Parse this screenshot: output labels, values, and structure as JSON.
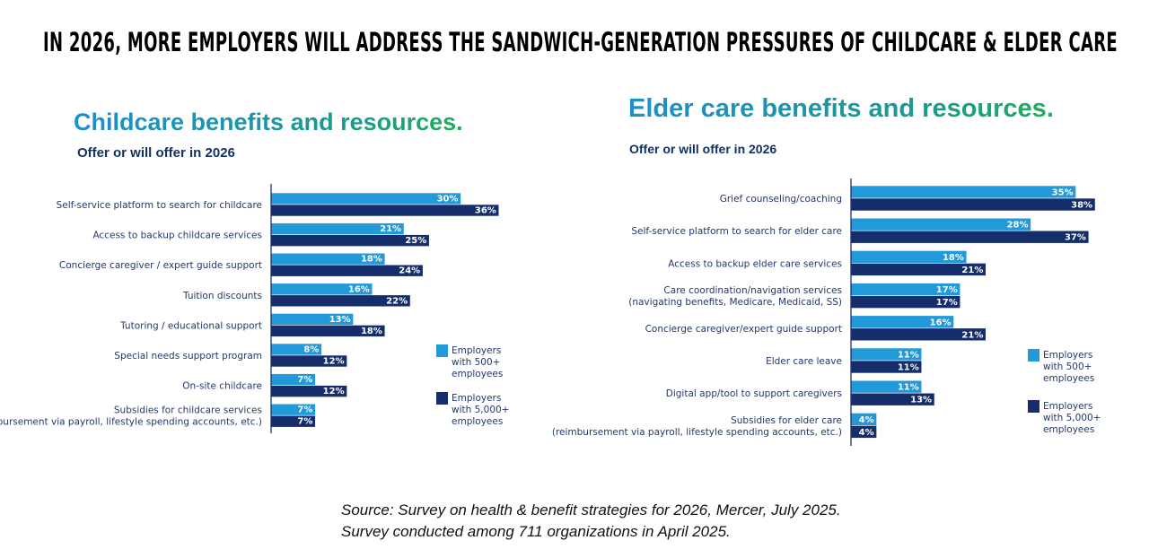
{
  "title": "IN 2026, MORE EMPLOYERS WILL ADDRESS THE SANDWICH-GENERATION PRESSURES OF CHILDCARE & ELDER CARE",
  "colors": {
    "employers_500": "#2299d8",
    "employers_5000": "#152e6b"
  },
  "chart_data": [
    {
      "type": "bar",
      "orientation": "horizontal",
      "title": "Childcare benefits and resources.",
      "subtitle": "Offer or will offer in 2026",
      "categories": [
        [
          "Self-service platform to search for childcare"
        ],
        [
          "Access to backup childcare services"
        ],
        [
          "Concierge caregiver / expert guide support"
        ],
        [
          "Tuition discounts"
        ],
        [
          "Tutoring / educational support"
        ],
        [
          "Special needs support program"
        ],
        [
          "On-site childcare"
        ],
        [
          "Subsidies for childcare services",
          "(reimbursement via payroll, lifestyle spending accounts, etc.)"
        ]
      ],
      "series": [
        {
          "name": "Employers with 500+ employees",
          "legend_lines": [
            "Employers",
            "with 500+",
            "employees"
          ],
          "values": [
            30,
            21,
            18,
            16,
            13,
            8,
            7,
            7
          ]
        },
        {
          "name": "Employers with 5,000+ employees",
          "legend_lines": [
            "Employers",
            "with 5,000+",
            "employees"
          ],
          "values": [
            36,
            25,
            24,
            22,
            18,
            12,
            12,
            7
          ]
        }
      ],
      "value_format": "{v}%",
      "legend_position": "right",
      "grid": false
    },
    {
      "type": "bar",
      "orientation": "horizontal",
      "title": "Elder care benefits and resources.",
      "subtitle": "Offer or will offer in 2026",
      "categories": [
        [
          "Grief counseling/coaching"
        ],
        [
          "Self-service platform to search for elder care"
        ],
        [
          "Access to backup elder care services"
        ],
        [
          "Care coordination/navigation services",
          "(navigating benefits, Medicare, Medicaid, SS)"
        ],
        [
          "Concierge caregiver/expert guide support"
        ],
        [
          "Elder care leave"
        ],
        [
          "Digital app/tool to support caregivers"
        ],
        [
          "Subsidies for elder care",
          "(reimbursement via payroll, lifestyle spending accounts, etc.)"
        ]
      ],
      "series": [
        {
          "name": "Employers with 500+ employees",
          "legend_lines": [
            "Employers",
            "with 500+",
            "employees"
          ],
          "values": [
            35,
            28,
            18,
            17,
            16,
            11,
            11,
            4
          ]
        },
        {
          "name": "Employers with 5,000+ employees",
          "legend_lines": [
            "Employers",
            "with 5,000+",
            "employees"
          ],
          "values": [
            38,
            37,
            21,
            17,
            21,
            11,
            13,
            4
          ]
        }
      ],
      "value_format": "{v}%",
      "legend_position": "right",
      "grid": false
    }
  ],
  "source": {
    "line1": "Source: Survey on health & benefit strategies for 2026, Mercer, July 2025.",
    "line2": "Survey conducted among  711 organizations in April 2025."
  }
}
